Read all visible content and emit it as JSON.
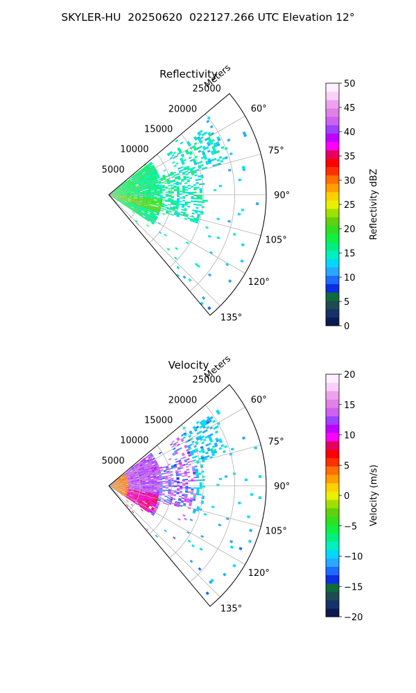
{
  "figure": {
    "title": "SKYLER-HU  20250620  022127.266 UTC Elevation 12°"
  },
  "chart_data": [
    {
      "type": "heatmap",
      "projection": "polar-sector",
      "title": "Reflectivity",
      "radial_axis_label": "Meters",
      "radial_ticks": [
        5000,
        10000,
        15000,
        20000,
        25000
      ],
      "radial_tick_labels": [
        "5000",
        "10000",
        "15000",
        "20000",
        "25000"
      ],
      "radial_max": 25000,
      "angle_range_deg": [
        50,
        140
      ],
      "angle_ticks": [
        60,
        75,
        90,
        105,
        120,
        135
      ],
      "angle_tick_labels": [
        "60°",
        "75°",
        "90°",
        "105°",
        "120°",
        "135°"
      ],
      "grid": true,
      "colorbar": {
        "label": "Reflectivity dBZ",
        "min": 0,
        "max": 50,
        "ticks": [
          0,
          5,
          10,
          15,
          20,
          25,
          30,
          35,
          40,
          45,
          50
        ],
        "tick_labels": [
          "0",
          "5",
          "10",
          "15",
          "20",
          "25",
          "30",
          "35",
          "40",
          "45",
          "50"
        ],
        "colors": [
          "#0d1a52",
          "#16326b",
          "#1f4a50",
          "#0f6b3a",
          "#0a2fe0",
          "#1e6bff",
          "#2aa8ff",
          "#00d8ff",
          "#00f0c0",
          "#00f080",
          "#10f040",
          "#30e020",
          "#60d010",
          "#a0e000",
          "#e8f000",
          "#ffd000",
          "#ffa000",
          "#ff7000",
          "#ff3000",
          "#ff0000",
          "#e80060",
          "#ff00ff",
          "#c000ff",
          "#a040ff",
          "#d060f0",
          "#e080e8",
          "#f0a0f0",
          "#fad0fa",
          "#fff0ff"
        ]
      },
      "observed_range_dbz": [
        10,
        28
      ],
      "dominant_range_dbz": [
        15,
        22
      ]
    },
    {
      "type": "heatmap",
      "projection": "polar-sector",
      "title": "Velocity",
      "radial_axis_label": "Meters",
      "radial_ticks": [
        5000,
        10000,
        15000,
        20000,
        25000
      ],
      "radial_tick_labels": [
        "5000",
        "10000",
        "15000",
        "20000",
        "25000"
      ],
      "radial_max": 25000,
      "angle_range_deg": [
        50,
        140
      ],
      "angle_ticks": [
        60,
        75,
        90,
        105,
        120,
        135
      ],
      "angle_tick_labels": [
        "60°",
        "75°",
        "90°",
        "105°",
        "120°",
        "135°"
      ],
      "grid": true,
      "colorbar": {
        "label": "Velocity (m/s)",
        "min": -20,
        "max": 20,
        "ticks": [
          -20,
          -15,
          -10,
          -5,
          0,
          5,
          10,
          15,
          20
        ],
        "tick_labels": [
          "−20",
          "−15",
          "−10",
          "−5",
          "0",
          "5",
          "10",
          "15",
          "20"
        ],
        "colors": [
          "#0d1a52",
          "#16326b",
          "#1f4a50",
          "#0f6b3a",
          "#0a2fe0",
          "#1e6bff",
          "#2aa8ff",
          "#00d8ff",
          "#00f0c0",
          "#00f080",
          "#10f040",
          "#30e020",
          "#60d010",
          "#a0e000",
          "#e8f000",
          "#ffd000",
          "#ffa000",
          "#ff7000",
          "#ff3000",
          "#ff0000",
          "#e80060",
          "#ff00ff",
          "#c000ff",
          "#a040ff",
          "#d060f0",
          "#e080e8",
          "#f0a0f0",
          "#fad0fa",
          "#fff0ff"
        ]
      },
      "observed_range_ms": [
        -14,
        16
      ],
      "near_field_ms": [
        2,
        8
      ],
      "mid_field_ms": [
        10,
        15
      ],
      "far_field_ms": [
        -12,
        -8
      ]
    }
  ]
}
